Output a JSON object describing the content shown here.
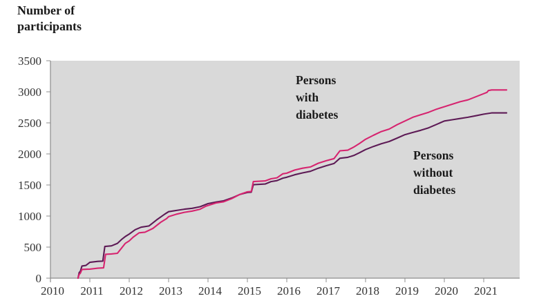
{
  "title": {
    "text": "Number of\nparticipants"
  },
  "annotations": {
    "with_diabetes": {
      "text": "Persons\nwith\ndiabetes"
    },
    "without_diabetes": {
      "text": "Persons\nwithout\ndiabetes"
    }
  },
  "chart_data": {
    "type": "line",
    "title": "Number of participants",
    "xlabel": "",
    "ylabel": "Number of participants",
    "x_ticks": [
      "2010",
      "2011",
      "2012",
      "2013",
      "2014",
      "2015",
      "2016",
      "2017",
      "2018",
      "2019",
      "2020",
      "2021"
    ],
    "y_ticks": [
      0,
      500,
      1000,
      1500,
      2000,
      2500,
      3000,
      3500
    ],
    "ylim": [
      0,
      3500
    ],
    "x_range": [
      2010,
      2021.9
    ],
    "grid": false,
    "legend_position": "inline-annotations",
    "plot_background": "#d9d9d9",
    "axis_color": "#8c8c8c",
    "series": [
      {
        "name": "Persons without diabetes",
        "color": "#5d1a55",
        "points": [
          [
            2010.7,
            0
          ],
          [
            2010.73,
            90
          ],
          [
            2010.76,
            110
          ],
          [
            2010.8,
            195
          ],
          [
            2010.9,
            205
          ],
          [
            2011.0,
            255
          ],
          [
            2011.2,
            270
          ],
          [
            2011.33,
            275
          ],
          [
            2011.38,
            510
          ],
          [
            2011.55,
            520
          ],
          [
            2011.7,
            560
          ],
          [
            2011.8,
            620
          ],
          [
            2011.9,
            670
          ],
          [
            2012.0,
            710
          ],
          [
            2012.15,
            780
          ],
          [
            2012.3,
            820
          ],
          [
            2012.5,
            840
          ],
          [
            2012.7,
            940
          ],
          [
            2012.9,
            1030
          ],
          [
            2013.0,
            1070
          ],
          [
            2013.2,
            1090
          ],
          [
            2013.4,
            1110
          ],
          [
            2013.6,
            1125
          ],
          [
            2013.8,
            1150
          ],
          [
            2014.0,
            1200
          ],
          [
            2014.2,
            1225
          ],
          [
            2014.4,
            1245
          ],
          [
            2014.6,
            1290
          ],
          [
            2014.8,
            1345
          ],
          [
            2015.0,
            1380
          ],
          [
            2015.1,
            1385
          ],
          [
            2015.15,
            1505
          ],
          [
            2015.45,
            1515
          ],
          [
            2015.6,
            1555
          ],
          [
            2015.75,
            1570
          ],
          [
            2015.9,
            1610
          ],
          [
            2016.0,
            1625
          ],
          [
            2016.2,
            1665
          ],
          [
            2016.4,
            1695
          ],
          [
            2016.6,
            1720
          ],
          [
            2016.8,
            1770
          ],
          [
            2017.0,
            1810
          ],
          [
            2017.2,
            1845
          ],
          [
            2017.35,
            1930
          ],
          [
            2017.55,
            1945
          ],
          [
            2017.7,
            1975
          ],
          [
            2017.85,
            2020
          ],
          [
            2018.0,
            2070
          ],
          [
            2018.2,
            2120
          ],
          [
            2018.4,
            2165
          ],
          [
            2018.6,
            2200
          ],
          [
            2018.8,
            2255
          ],
          [
            2019.0,
            2310
          ],
          [
            2019.2,
            2345
          ],
          [
            2019.4,
            2380
          ],
          [
            2019.6,
            2420
          ],
          [
            2019.8,
            2475
          ],
          [
            2020.0,
            2530
          ],
          [
            2020.2,
            2550
          ],
          [
            2020.4,
            2570
          ],
          [
            2020.6,
            2590
          ],
          [
            2020.8,
            2615
          ],
          [
            2021.0,
            2640
          ],
          [
            2021.1,
            2650
          ],
          [
            2021.2,
            2660
          ],
          [
            2021.58,
            2660
          ]
        ]
      },
      {
        "name": "Persons with diabetes",
        "color": "#d6246f",
        "points": [
          [
            2010.7,
            0
          ],
          [
            2010.73,
            60
          ],
          [
            2010.76,
            80
          ],
          [
            2010.8,
            140
          ],
          [
            2011.0,
            145
          ],
          [
            2011.2,
            160
          ],
          [
            2011.35,
            165
          ],
          [
            2011.4,
            385
          ],
          [
            2011.55,
            390
          ],
          [
            2011.7,
            400
          ],
          [
            2011.8,
            480
          ],
          [
            2011.9,
            560
          ],
          [
            2012.0,
            600
          ],
          [
            2012.1,
            660
          ],
          [
            2012.25,
            730
          ],
          [
            2012.4,
            740
          ],
          [
            2012.6,
            800
          ],
          [
            2012.8,
            900
          ],
          [
            2012.95,
            960
          ],
          [
            2013.0,
            990
          ],
          [
            2013.2,
            1030
          ],
          [
            2013.4,
            1060
          ],
          [
            2013.6,
            1080
          ],
          [
            2013.8,
            1110
          ],
          [
            2013.95,
            1160
          ],
          [
            2014.0,
            1170
          ],
          [
            2014.2,
            1210
          ],
          [
            2014.4,
            1230
          ],
          [
            2014.6,
            1280
          ],
          [
            2014.8,
            1345
          ],
          [
            2015.0,
            1390
          ],
          [
            2015.1,
            1395
          ],
          [
            2015.15,
            1555
          ],
          [
            2015.45,
            1565
          ],
          [
            2015.6,
            1600
          ],
          [
            2015.75,
            1615
          ],
          [
            2015.9,
            1680
          ],
          [
            2016.0,
            1690
          ],
          [
            2016.2,
            1740
          ],
          [
            2016.4,
            1770
          ],
          [
            2016.6,
            1790
          ],
          [
            2016.8,
            1850
          ],
          [
            2017.0,
            1890
          ],
          [
            2017.2,
            1925
          ],
          [
            2017.35,
            2050
          ],
          [
            2017.55,
            2060
          ],
          [
            2017.7,
            2110
          ],
          [
            2017.85,
            2170
          ],
          [
            2018.0,
            2235
          ],
          [
            2018.2,
            2300
          ],
          [
            2018.4,
            2360
          ],
          [
            2018.6,
            2400
          ],
          [
            2018.8,
            2470
          ],
          [
            2019.0,
            2530
          ],
          [
            2019.2,
            2590
          ],
          [
            2019.4,
            2630
          ],
          [
            2019.6,
            2670
          ],
          [
            2019.8,
            2720
          ],
          [
            2020.0,
            2760
          ],
          [
            2020.2,
            2800
          ],
          [
            2020.4,
            2840
          ],
          [
            2020.6,
            2870
          ],
          [
            2020.8,
            2920
          ],
          [
            2021.0,
            2970
          ],
          [
            2021.08,
            2990
          ],
          [
            2021.12,
            3020
          ],
          [
            2021.2,
            3030
          ],
          [
            2021.58,
            3030
          ]
        ]
      }
    ]
  }
}
